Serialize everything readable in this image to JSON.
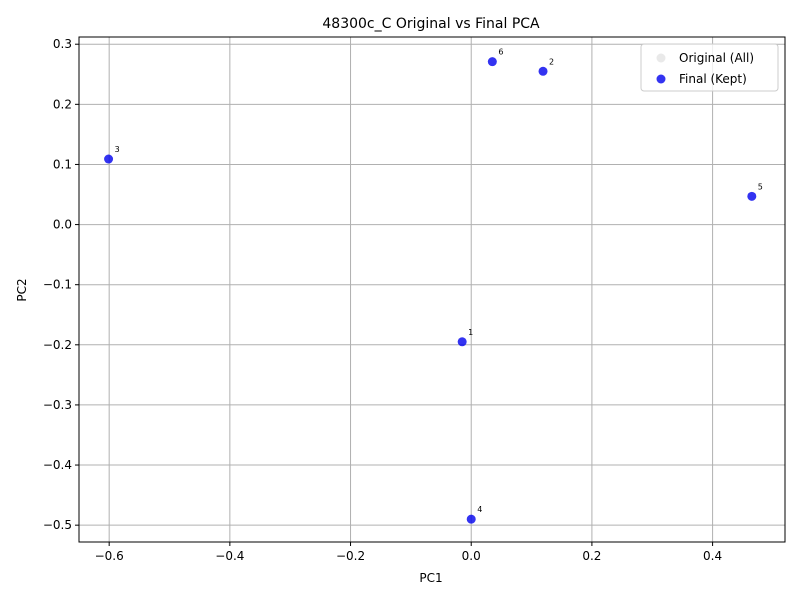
{
  "chart_data": {
    "type": "scatter",
    "title": "48300c_C Original vs Final PCA",
    "xlabel": "PC1",
    "ylabel": "PC2",
    "xlim": [
      -0.65,
      0.52
    ],
    "ylim": [
      -0.528,
      0.312
    ],
    "xticks": [
      -0.6,
      -0.4,
      -0.2,
      0.0,
      0.2,
      0.4
    ],
    "xtick_labels": [
      "−0.6",
      "−0.4",
      "−0.2",
      "0.0",
      "0.2",
      "0.4"
    ],
    "yticks": [
      -0.5,
      -0.4,
      -0.3,
      -0.2,
      -0.1,
      0.0,
      0.1,
      0.2,
      0.3
    ],
    "ytick_labels": [
      "−0.5",
      "−0.4",
      "−0.3",
      "−0.2",
      "−0.1",
      "0.0",
      "0.1",
      "0.2",
      "0.3"
    ],
    "grid": true,
    "legend_position": "top-right",
    "series": [
      {
        "name": "Original (All)",
        "color": "#d3d3d3",
        "points": []
      },
      {
        "name": "Final (Kept)",
        "color": "#0000ee",
        "points": [
          {
            "label": "1",
            "x": -0.015,
            "y": -0.195
          },
          {
            "label": "2",
            "x": 0.119,
            "y": 0.255
          },
          {
            "label": "3",
            "x": -0.601,
            "y": 0.109
          },
          {
            "label": "4",
            "x": 0.0,
            "y": -0.49
          },
          {
            "label": "5",
            "x": 0.465,
            "y": 0.047
          },
          {
            "label": "6",
            "x": 0.035,
            "y": 0.271
          }
        ]
      }
    ]
  }
}
